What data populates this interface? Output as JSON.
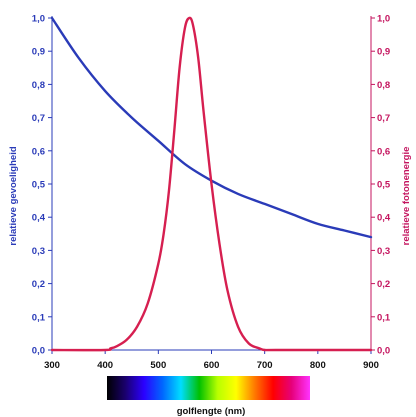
{
  "chart_data": {
    "type": "line",
    "xlabel": "golflengte (nm)",
    "x_ticks": [
      "300",
      "400",
      "500",
      "600",
      "700",
      "800",
      "900"
    ],
    "xlim": [
      300,
      900
    ],
    "ylim_left": [
      0,
      1
    ],
    "ylim_right": [
      0,
      1
    ],
    "y_ticks_left": [
      "0,0",
      "0,1",
      "0,2",
      "0,3",
      "0,4",
      "0,5",
      "0,6",
      "0,7",
      "0,8",
      "0,9",
      "1,0"
    ],
    "y_ticks_right": [
      "0,0",
      "0,1",
      "0,2",
      "0,3",
      "0,4",
      "0,5",
      "0,6",
      "0,7",
      "0,8",
      "0,9",
      "1,0"
    ],
    "ylabel_left": "relatieve gevoeligheid",
    "ylabel_right": "relatieve fotonenergie",
    "grid": false,
    "colors": {
      "left_axis": "#2a3bb8",
      "right_axis": "#c4155f",
      "series_blue": "#2a3bb8",
      "series_red": "#d61f50"
    },
    "series": [
      {
        "axis": "left",
        "color": "#2a3bb8",
        "x": [
          300,
          350,
          400,
          450,
          500,
          550,
          600,
          650,
          700,
          750,
          800,
          850,
          900
        ],
        "y": [
          1.0,
          0.88,
          0.78,
          0.7,
          0.63,
          0.56,
          0.51,
          0.47,
          0.44,
          0.41,
          0.38,
          0.36,
          0.34
        ]
      },
      {
        "axis": "right",
        "color": "#d61f50",
        "x": [
          300,
          400,
          410,
          420,
          440,
          460,
          480,
          500,
          510,
          520,
          530,
          540,
          550,
          558,
          565,
          575,
          585,
          600,
          615,
          630,
          650,
          670,
          690,
          700,
          720,
          900
        ],
        "y": [
          0.0,
          0.0,
          0.005,
          0.01,
          0.03,
          0.07,
          0.14,
          0.26,
          0.35,
          0.48,
          0.66,
          0.85,
          0.97,
          1.0,
          0.98,
          0.88,
          0.72,
          0.5,
          0.32,
          0.18,
          0.07,
          0.02,
          0.005,
          0.0,
          0.0,
          0.0
        ]
      }
    ],
    "spectrum_bar": {
      "stops": [
        "#000000",
        "#1a006e",
        "#2b00ff",
        "#0066ff",
        "#00ddff",
        "#00c000",
        "#b8ff00",
        "#ffff00",
        "#ff7a00",
        "#ff0000",
        "#e6007a",
        "#ff33ff"
      ]
    }
  }
}
